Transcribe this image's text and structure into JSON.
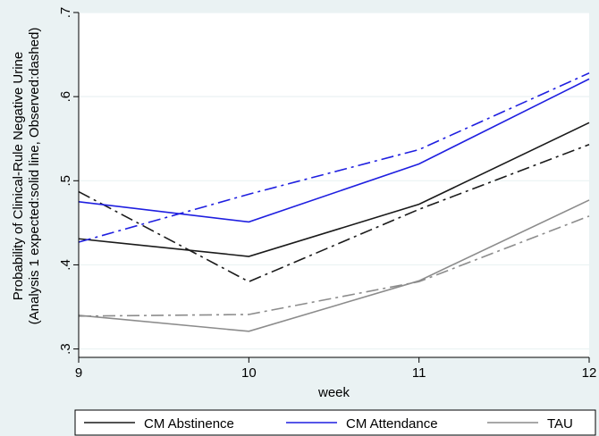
{
  "chart_data": {
    "type": "line",
    "x": [
      9,
      10,
      11,
      12
    ],
    "xlabel": "week",
    "ylabel_lines": [
      "Probability of Clinical-Rule Negative Urine",
      "(Analysis 1 expected:solid line, Observed:dashed)"
    ],
    "xticks": [
      9,
      10,
      11,
      12
    ],
    "xtick_labels": [
      "9",
      "10",
      "11",
      "12"
    ],
    "yticks": [
      0.3,
      0.4,
      0.5,
      0.6,
      0.7
    ],
    "ytick_labels": [
      ".3",
      ".4",
      ".5",
      ".6",
      ".7"
    ],
    "xlim": [
      9,
      12
    ],
    "ylim": [
      0.29,
      0.7
    ],
    "grid": true,
    "legend_position": "bottom",
    "series": [
      {
        "name": "CM Abstinence",
        "color": "#1a1a1a",
        "style": "solid",
        "values": [
          0.431,
          0.41,
          0.472,
          0.569
        ]
      },
      {
        "color": "#1a1a1a",
        "style": "dashed",
        "values": [
          0.487,
          0.38,
          0.466,
          0.543
        ]
      },
      {
        "name": "CM Attendance",
        "color": "#1f1fe0",
        "style": "solid",
        "values": [
          0.475,
          0.451,
          0.52,
          0.621
        ]
      },
      {
        "color": "#1f1fe0",
        "style": "dashed",
        "values": [
          0.427,
          0.484,
          0.537,
          0.628
        ]
      },
      {
        "name": "TAU",
        "color": "#8c8c8c",
        "style": "solid",
        "values": [
          0.34,
          0.321,
          0.381,
          0.477
        ]
      },
      {
        "color": "#8c8c8c",
        "style": "dashed",
        "values": [
          0.339,
          0.341,
          0.38,
          0.458
        ]
      }
    ],
    "colors": {
      "background": "#eaf2f3",
      "plot_background": "#ffffff",
      "grid": "#eaf2f3",
      "axis": "#000000"
    }
  }
}
